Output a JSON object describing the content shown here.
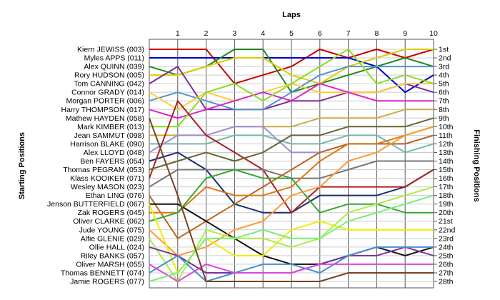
{
  "chart_data": {
    "type": "line",
    "title": "",
    "top_axis_label": "Laps",
    "left_axis_label": "Starting Positions",
    "right_axis_label": "Finishing Positions",
    "x": [
      0,
      1,
      2,
      3,
      4,
      5,
      6,
      7,
      8,
      9,
      10
    ],
    "x_tick_labels": [
      "1",
      "2",
      "3",
      "4",
      "5",
      "6",
      "7",
      "8",
      "9",
      "10"
    ],
    "ylim": [
      1,
      28
    ],
    "y_inverted": true,
    "grid": true,
    "starting_labels": [
      "Kiern JEWISS (003)",
      "Myles APPS (011)",
      "Alex QUINN (039)",
      "Rory HUDSON (005)",
      "Tom CANNING (042)",
      "Connor GRADY (014)",
      "Morgan PORTER (006)",
      "Harry THOMPSON (017)",
      "Mathew HAYDEN (058)",
      "Mark KIMBER (013)",
      "Jean SAMMUT (098)",
      "Harrison BLAKE (090)",
      "Alex LLOYD (048)",
      "Ben FAYERS (054)",
      "Thomas PEGRAM (053)",
      "Klass KOOIKER (071)",
      "Wesley MASON (023)",
      "Ethan LING (076)",
      "Jenson BUTTERFIELD (067)",
      "Zak ROGERS (045)",
      "Oliver CLARKE (062)",
      "Jude YOUNG (075)",
      "Alfie GLENIE (029)",
      "Ollie HALL (024)",
      "Riley BANKS (057)",
      "Oliver MARSH (055)",
      "Thomas BENNETT (074)",
      "Jamie ROGERS (077)"
    ],
    "finishing_labels": [
      "1st",
      "2nd",
      "3rd",
      "4th",
      "5th",
      "6th",
      "7th",
      "8th",
      "9th",
      "10th",
      "11th",
      "12th",
      "13th",
      "14th",
      "15th",
      "16th",
      "17th",
      "18th",
      "19th",
      "20th",
      "21st",
      "22nd",
      "23rd",
      "24th",
      "25th",
      "26th",
      "27th",
      "28th"
    ],
    "series": [
      {
        "color": "#cc0000",
        "values": [
          1,
          1,
          1,
          5,
          4,
          3,
          1,
          2,
          1,
          2,
          1
        ]
      },
      {
        "color": "#0000cc",
        "values": [
          2,
          2,
          2,
          2,
          2,
          2,
          2,
          2,
          3,
          6,
          4
        ]
      },
      {
        "color": "#228822",
        "values": [
          3,
          4,
          3,
          1,
          1,
          6,
          5,
          4,
          3,
          2,
          3
        ]
      },
      {
        "color": "#ddcc00",
        "values": [
          4,
          4,
          3,
          2,
          2,
          4,
          5,
          3,
          2,
          1,
          1
        ]
      },
      {
        "color": "#7b2f9e",
        "values": [
          5,
          3,
          8,
          8,
          8,
          7,
          7,
          6,
          6,
          5,
          6
        ]
      },
      {
        "color": "#4f94cf",
        "values": [
          7,
          6,
          7,
          8,
          8,
          6,
          4,
          3,
          3,
          3,
          3
        ]
      },
      {
        "color": "#ffcc33",
        "values": [
          6,
          8,
          6,
          7,
          6,
          5,
          6,
          6,
          6,
          5,
          5
        ]
      },
      {
        "color": "#dd22cc",
        "values": [
          8,
          9,
          8,
          7,
          6,
          7,
          5,
          6,
          7,
          7,
          7
        ]
      },
      {
        "color": "#88dd22",
        "values": [
          10,
          10,
          6,
          5,
          7,
          5,
          3,
          1,
          5,
          4,
          5
        ]
      },
      {
        "color": "#ccaa44",
        "values": [
          11,
          11,
          11,
          10,
          10,
          10,
          9,
          9,
          9,
          8,
          8
        ]
      },
      {
        "color": "#9b8fd8",
        "values": [
          13,
          11,
          11,
          10,
          10,
          13,
          13,
          12,
          12,
          12,
          11
        ]
      },
      {
        "color": "#73b8a8",
        "values": [
          12,
          12,
          12,
          11,
          11,
          12,
          12,
          11,
          11,
          13,
          12
        ]
      },
      {
        "color": "#1b2f6e",
        "values": [
          14,
          13,
          15,
          19,
          20,
          20,
          18,
          18,
          18,
          17,
          15
        ]
      },
      {
        "color": "#aa2222",
        "values": [
          16,
          7,
          11,
          13,
          15,
          20,
          17,
          17,
          17,
          17,
          15
        ]
      },
      {
        "color": "#777777",
        "values": [
          17,
          15,
          15,
          15,
          15,
          16,
          16,
          15,
          14,
          14,
          14
        ]
      },
      {
        "color": "#bb6622",
        "values": [
          18,
          23,
          21,
          19,
          17,
          15,
          13,
          12,
          12,
          12,
          11
        ]
      },
      {
        "color": "#dd7711",
        "values": [
          20,
          20,
          17,
          18,
          18,
          17,
          14,
          12,
          12,
          11,
          10
        ]
      },
      {
        "color": "#111111",
        "values": [
          19,
          19,
          21,
          23,
          25,
          26,
          26,
          25,
          24,
          25,
          24
        ]
      },
      {
        "color": "#666633",
        "values": [
          15,
          14,
          13,
          14,
          13,
          11,
          11,
          10,
          10,
          10,
          9
        ]
      },
      {
        "color": "#33aa33",
        "values": [
          21,
          20,
          16,
          15,
          16,
          16,
          20,
          19,
          19,
          20,
          20
        ]
      },
      {
        "color": "#ff9933",
        "values": [
          22,
          25,
          24,
          22,
          21,
          18,
          17,
          14,
          13,
          11,
          10
        ]
      },
      {
        "color": "#eeee00",
        "values": [
          19,
          27,
          23,
          25,
          25,
          22,
          21,
          22,
          22,
          22,
          22
        ]
      },
      {
        "color": "#aaee44",
        "values": [
          23,
          28,
          22,
          23,
          23,
          24,
          23,
          20,
          19,
          18,
          17
        ]
      },
      {
        "color": "#773399",
        "values": [
          24,
          25,
          27,
          27,
          27,
          27,
          26,
          25,
          25,
          24,
          25
        ]
      },
      {
        "color": "#448fd0",
        "values": [
          27,
          25,
          28,
          27,
          26,
          26,
          27,
          25,
          24,
          24,
          24
        ]
      },
      {
        "color": "#dd44dd",
        "values": [
          26,
          28,
          26,
          27,
          27,
          27,
          26,
          26,
          26,
          26,
          26
        ]
      },
      {
        "color": "#77ee77",
        "values": [
          28,
          27,
          23,
          23,
          22,
          23,
          23,
          21,
          20,
          19,
          18
        ]
      },
      {
        "color": "#774422",
        "values": [
          9,
          18,
          28,
          28,
          28,
          28,
          28,
          27,
          27,
          27,
          27
        ]
      }
    ]
  }
}
